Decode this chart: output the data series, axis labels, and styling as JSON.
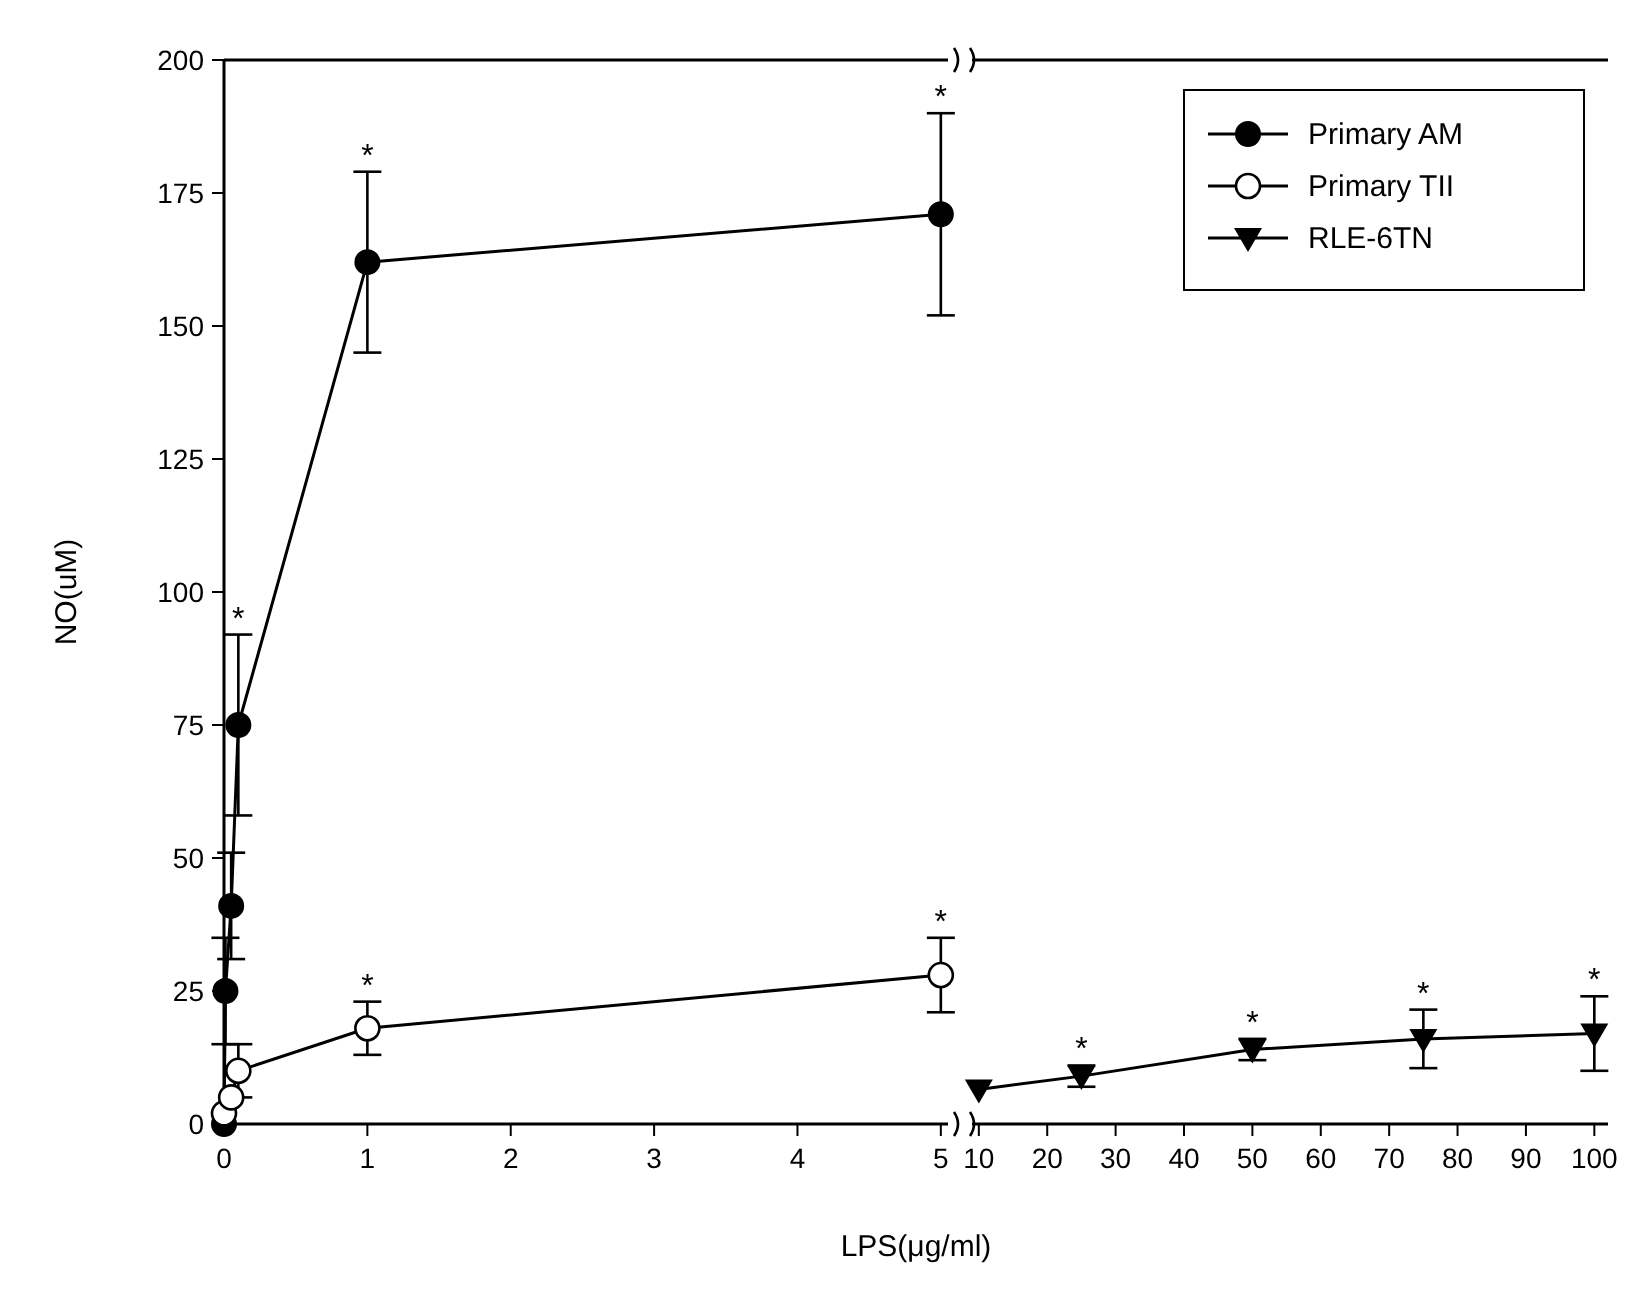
{
  "chart_data": [
    {
      "type": "line",
      "ylabel": "NO(uM)",
      "xlabel": "LPS(μg/ml)",
      "xlim": [
        0,
        5.05
      ],
      "xticks": [
        0,
        1,
        2,
        3,
        4,
        5
      ],
      "ylim": [
        0,
        200
      ],
      "yticks": [
        0,
        25,
        50,
        75,
        100,
        125,
        150,
        175,
        200
      ],
      "grid": false,
      "legend": "top right",
      "series": [
        {
          "name": "Primary AM",
          "color": "#000000",
          "marker": "circle",
          "x": [
            0,
            0.01,
            0.05,
            0.1,
            1,
            5
          ],
          "values": [
            0,
            25,
            41,
            75,
            162,
            171
          ],
          "errors": [
            null,
            10,
            10,
            17,
            17,
            19
          ]
        },
        {
          "name": "Primary TII",
          "color": "#000000",
          "marker": "circle-open",
          "x": [
            0,
            0.05,
            0.1,
            1,
            5
          ],
          "values": [
            2,
            5,
            10,
            18,
            28
          ],
          "errors": [
            null,
            null,
            5,
            5,
            7
          ]
        }
      ],
      "annotations": [
        {
          "text": "*",
          "x": 0.1,
          "y": 92
        },
        {
          "text": "*",
          "x": 1,
          "y": 179
        },
        {
          "text": "*",
          "x": 5,
          "y": 190
        },
        {
          "text": "*",
          "x": 1,
          "y": 23
        },
        {
          "text": "*",
          "x": 5,
          "y": 35
        }
      ]
    },
    {
      "type": "line",
      "xlim": [
        9,
        102
      ],
      "xticks": [
        10,
        20,
        30,
        40,
        50,
        60,
        70,
        80,
        90,
        100
      ],
      "ylim": [
        0,
        200
      ],
      "tick_labels": "x",
      "legend": "top right",
      "series": [
        {
          "name": "RLE-6TN",
          "color": "#000000",
          "marker": "triangle-down",
          "x": [
            10,
            25,
            50,
            75,
            100
          ],
          "values": [
            6.5,
            9,
            14,
            16,
            17
          ],
          "errors": [
            null,
            2,
            2,
            5.5,
            7
          ]
        }
      ],
      "annotations": [
        {
          "text": "*",
          "x": 25,
          "y": 11
        },
        {
          "text": "*",
          "x": 50,
          "y": 16
        },
        {
          "text": "*",
          "x": 75,
          "y": 21.5
        },
        {
          "text": "*",
          "x": 100,
          "y": 24
        }
      ]
    }
  ]
}
